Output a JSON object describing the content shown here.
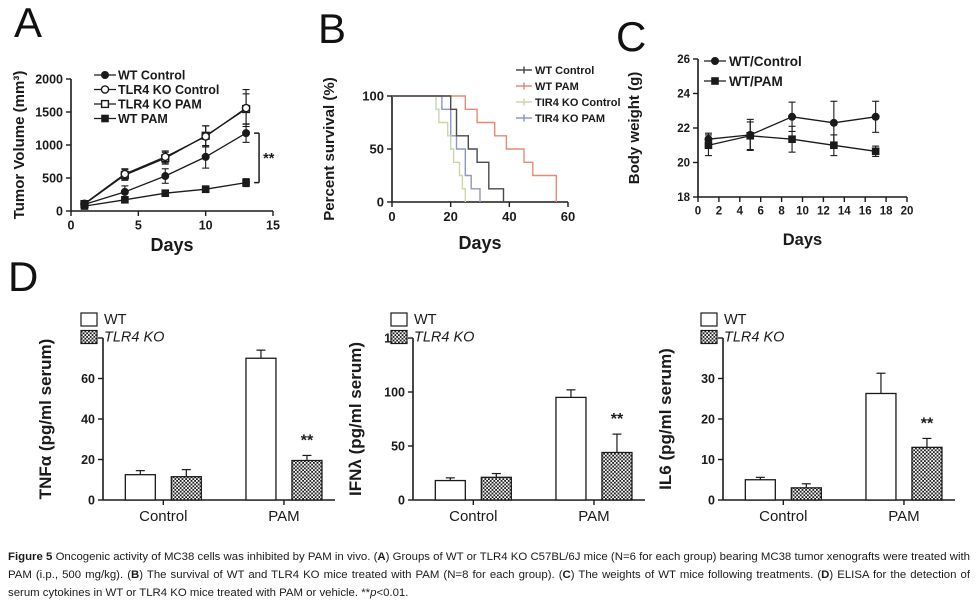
{
  "panels": {
    "a": "A",
    "b": "B",
    "c": "C",
    "d": "D"
  },
  "caption": {
    "segments": [
      {
        "text": "Figure 5 ",
        "bold": true
      },
      {
        "text": "Oncogenic activity of MC38 cells was inhibited by PAM in vivo. ("
      },
      {
        "text": "A",
        "bold": true
      },
      {
        "text": ") Groups of WT or TLR4 KO C57BL/6J mice (N=6 for each group) bearing MC38 tumor xenografts were treated with PAM (i.p., 500 mg/kg). ("
      },
      {
        "text": "B",
        "bold": true
      },
      {
        "text": ") The survival of WT and TLR4 KO mice treated with PAM (N=8 for each group). ("
      },
      {
        "text": "C",
        "bold": true
      },
      {
        "text": ") The weights of WT mice following treatments. ("
      },
      {
        "text": "D",
        "bold": true
      },
      {
        "text": ") ELISA for the detection of serum cytokines in WT or TLR4 KO mice treated with PAM or vehicle. **"
      },
      {
        "text": "p",
        "italic": true
      },
      {
        "text": "<0.01."
      }
    ]
  },
  "chart_data": [
    {
      "id": "tumor-volume",
      "panel": "A",
      "type": "line",
      "xlabel": "Days",
      "ylabel": "Tumor Volume (mm³)",
      "xlim": [
        0,
        15
      ],
      "xticks": [
        0,
        5,
        10,
        15
      ],
      "ylim": [
        0,
        2000
      ],
      "yticks": [
        0,
        500,
        1000,
        1500,
        2000
      ],
      "x": [
        1,
        4,
        7,
        10,
        13
      ],
      "series": [
        {
          "name": "WT Control",
          "marker": "circle-filled",
          "color": "#1a1a1a",
          "values": [
            100,
            290,
            530,
            820,
            1180
          ],
          "errors": [
            40,
            90,
            110,
            170,
            140
          ]
        },
        {
          "name": "TLR4 KO Control",
          "marker": "circle-open",
          "color": "#1a1a1a",
          "values": [
            110,
            560,
            820,
            1130,
            1560
          ],
          "errors": [
            40,
            80,
            90,
            160,
            280
          ]
        },
        {
          "name": "TLR4 KO PAM",
          "marker": "square-open",
          "color": "#1a1a1a",
          "values": [
            105,
            545,
            800,
            1140,
            1545
          ],
          "errors": [
            40,
            80,
            90,
            150,
            230
          ]
        },
        {
          "name": "WT PAM",
          "marker": "square-filled",
          "color": "#1a1a1a",
          "values": [
            75,
            170,
            270,
            330,
            430
          ],
          "errors": [
            30,
            40,
            45,
            50,
            60
          ]
        }
      ],
      "significance": {
        "type": "bracket",
        "label": "**",
        "x": 13,
        "from_series": "WT Control",
        "to_series": "WT PAM"
      }
    },
    {
      "id": "survival",
      "panel": "B",
      "type": "step",
      "xlabel": "Days",
      "ylabel": "Percent survival (%)",
      "xlim": [
        0,
        60
      ],
      "xticks": [
        0,
        20,
        40,
        60
      ],
      "ylim": [
        0,
        100
      ],
      "yticks": [
        0,
        50,
        100
      ],
      "series": [
        {
          "name": "WT Control",
          "color": "#4a4a4a",
          "points": [
            [
              0,
              100
            ],
            [
              20,
              100
            ],
            [
              20,
              87.5
            ],
            [
              22,
              87.5
            ],
            [
              22,
              62.5
            ],
            [
              26,
              62.5
            ],
            [
              26,
              50
            ],
            [
              29,
              50
            ],
            [
              29,
              37.5
            ],
            [
              33,
              37.5
            ],
            [
              33,
              12.5
            ],
            [
              38,
              12.5
            ],
            [
              38,
              0
            ]
          ]
        },
        {
          "name": "WT PAM",
          "color": "#e58b72",
          "points": [
            [
              0,
              100
            ],
            [
              25,
              100
            ],
            [
              25,
              87.5
            ],
            [
              29,
              87.5
            ],
            [
              29,
              75
            ],
            [
              35,
              75
            ],
            [
              35,
              62.5
            ],
            [
              39,
              62.5
            ],
            [
              39,
              50
            ],
            [
              45,
              50
            ],
            [
              45,
              37.5
            ],
            [
              48,
              37.5
            ],
            [
              48,
              25
            ],
            [
              56,
              25
            ],
            [
              56,
              0
            ]
          ]
        },
        {
          "name": "TIR4 KO Control",
          "color": "#c9d6ae",
          "points": [
            [
              0,
              100
            ],
            [
              15,
              100
            ],
            [
              15,
              87.5
            ],
            [
              16,
              87.5
            ],
            [
              16,
              75
            ],
            [
              19,
              75
            ],
            [
              19,
              62.5
            ],
            [
              20,
              62.5
            ],
            [
              20,
              50
            ],
            [
              21,
              50
            ],
            [
              21,
              37.5
            ],
            [
              23,
              37.5
            ],
            [
              23,
              25
            ],
            [
              24,
              25
            ],
            [
              24,
              12.5
            ],
            [
              25,
              12.5
            ],
            [
              25,
              0
            ]
          ]
        },
        {
          "name": "TIR4 KO PAM",
          "color": "#8e96c8",
          "points": [
            [
              0,
              100
            ],
            [
              17,
              100
            ],
            [
              17,
              87.5
            ],
            [
              20,
              87.5
            ],
            [
              20,
              62.5
            ],
            [
              22,
              62.5
            ],
            [
              22,
              50
            ],
            [
              25,
              50
            ],
            [
              25,
              25
            ],
            [
              27,
              25
            ],
            [
              27,
              12.5
            ],
            [
              30,
              12.5
            ],
            [
              30,
              0
            ]
          ]
        }
      ]
    },
    {
      "id": "body-weight",
      "panel": "C",
      "type": "line",
      "xlabel": "Days",
      "ylabel": "Body weight (g)",
      "xlim": [
        0,
        20
      ],
      "xticks": [
        0,
        2,
        4,
        6,
        8,
        10,
        12,
        14,
        16,
        18,
        20
      ],
      "ylim": [
        18,
        26
      ],
      "yticks": [
        18,
        20,
        22,
        24,
        26
      ],
      "x": [
        1,
        5,
        9,
        13,
        17
      ],
      "series": [
        {
          "name": "WT/Control",
          "marker": "circle-filled",
          "color": "#1a1a1a",
          "values": [
            21.35,
            21.6,
            22.65,
            22.3,
            22.65
          ],
          "errors": [
            0.35,
            0.9,
            0.85,
            1.25,
            0.9
          ]
        },
        {
          "name": "WT/PAM",
          "marker": "square-filled",
          "color": "#1a1a1a",
          "values": [
            21.0,
            21.55,
            21.35,
            21.0,
            20.65
          ],
          "errors": [
            0.6,
            0.8,
            0.75,
            0.6,
            0.3
          ]
        }
      ]
    },
    {
      "id": "tnfa",
      "panel": "D",
      "type": "bar",
      "ylabel": "TNFα (pg/ml serum)",
      "ylim": [
        0,
        80
      ],
      "yticks": [
        0,
        20,
        40,
        60,
        80
      ],
      "categories": [
        "Control",
        "PAM"
      ],
      "series": [
        {
          "name": "WT",
          "fill": "open",
          "values": [
            12.5,
            70
          ],
          "errors": [
            2,
            4
          ]
        },
        {
          "name": "TLR4 KO",
          "fill": "hatch",
          "italic": true,
          "values": [
            11.5,
            19.5
          ],
          "errors": [
            3.5,
            2.5
          ]
        }
      ],
      "significance": {
        "type": "stars",
        "label": "**",
        "category": "PAM",
        "series": "TLR4 KO"
      }
    },
    {
      "id": "ifnl",
      "panel": "D",
      "type": "bar",
      "ylabel": "IFNλ (pg/ml serum)",
      "ylim": [
        0,
        150
      ],
      "yticks": [
        0,
        50,
        100,
        150
      ],
      "categories": [
        "Control",
        "PAM"
      ],
      "series": [
        {
          "name": "WT",
          "fill": "open",
          "values": [
            18,
            95
          ],
          "errors": [
            2.5,
            7
          ]
        },
        {
          "name": "TLR4 KO",
          "fill": "hatch",
          "italic": true,
          "values": [
            21,
            44
          ],
          "errors": [
            3.5,
            17
          ]
        }
      ],
      "significance": {
        "type": "stars",
        "label": "**",
        "category": "PAM",
        "series": "TLR4 KO"
      }
    },
    {
      "id": "il6",
      "panel": "D",
      "type": "bar",
      "ylabel": "IL6 (pg/ml serum)",
      "ylim": [
        0,
        40
      ],
      "yticks": [
        0,
        10,
        20,
        30,
        40
      ],
      "categories": [
        "Control",
        "PAM"
      ],
      "series": [
        {
          "name": "WT",
          "fill": "open",
          "values": [
            5,
            26.3
          ],
          "errors": [
            0.6,
            5
          ]
        },
        {
          "name": "TLR4 KO",
          "fill": "hatch",
          "italic": true,
          "values": [
            3,
            13
          ],
          "errors": [
            1,
            2.2
          ]
        }
      ],
      "significance": {
        "type": "stars",
        "label": "**",
        "category": "PAM",
        "series": "TLR4 KO"
      }
    }
  ]
}
